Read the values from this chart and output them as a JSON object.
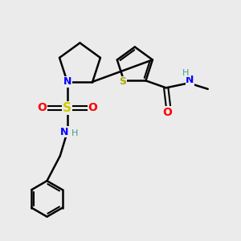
{
  "bg_color": "#ebebeb",
  "atom_colors": {
    "C": "#000000",
    "N": "#0000ff",
    "O": "#ff0000",
    "S_sulfonyl": "#cccc00",
    "S_thiophene": "#aaaa00",
    "H": "#4a9a8a"
  },
  "bond_color": "#000000",
  "figsize": [
    3.0,
    3.0
  ],
  "dpi": 100
}
